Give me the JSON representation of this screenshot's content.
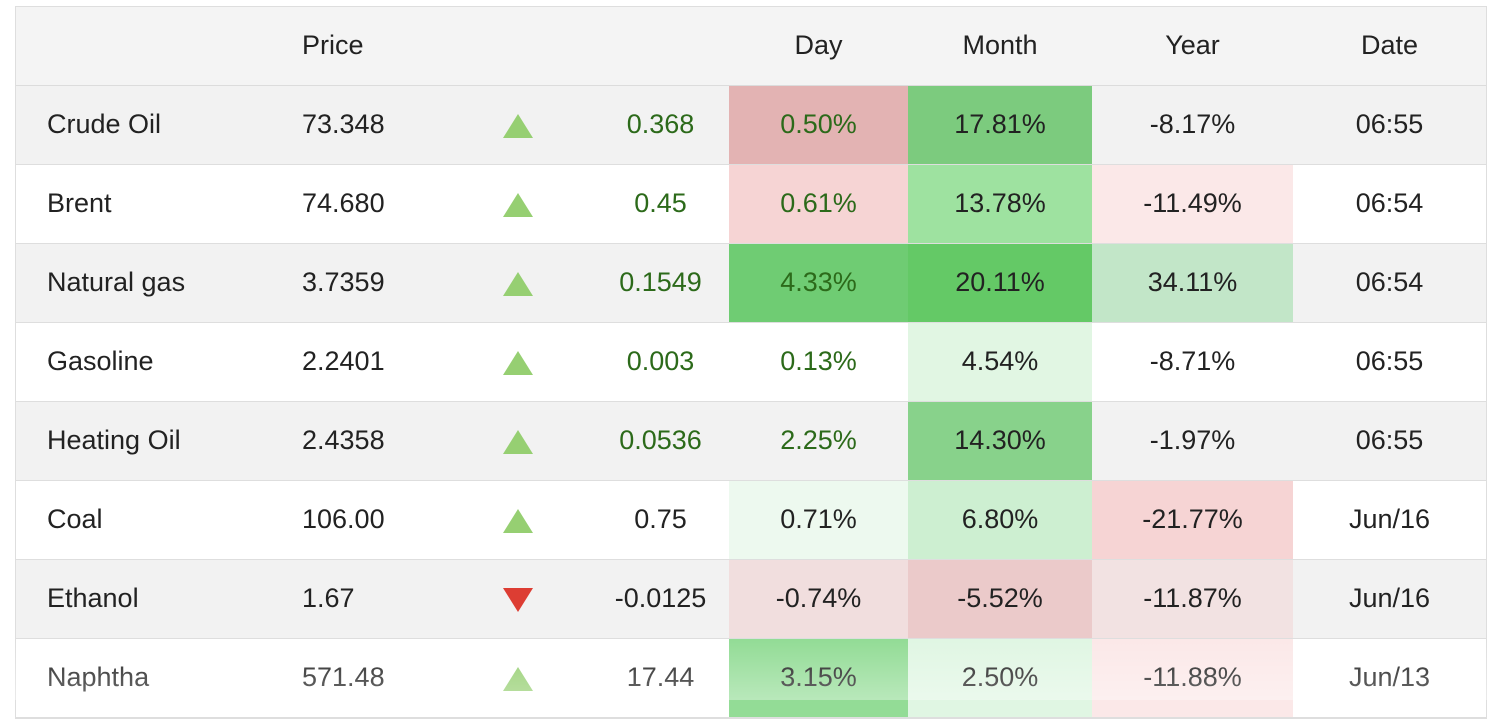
{
  "table": {
    "headers": {
      "name": "",
      "price": "Price",
      "arrow": "",
      "change": "",
      "day": "Day",
      "month": "Month",
      "year": "Year",
      "date": "Date"
    },
    "rows": [
      {
        "name": "Crude Oil",
        "price": "73.348",
        "direction": "up",
        "change": "0.368",
        "change_color": "green",
        "day": "0.50%",
        "day_bg": "#e3b3b3",
        "day_color": "green",
        "month": "17.81%",
        "month_bg": "#7ccb7e",
        "year": "-8.17%",
        "year_bg": "",
        "date": "06:55"
      },
      {
        "name": "Brent",
        "price": "74.680",
        "direction": "up",
        "change": "0.45",
        "change_color": "green",
        "day": "0.61%",
        "day_bg": "#f6d4d4",
        "day_color": "green",
        "month": "13.78%",
        "month_bg": "#9ee2a0",
        "year": "-11.49%",
        "year_bg": "#fbe8e8",
        "date": "06:54"
      },
      {
        "name": "Natural gas",
        "price": "3.7359",
        "direction": "up",
        "change": "0.1549",
        "change_color": "green",
        "day": "4.33%",
        "day_bg": "#6fcc73",
        "day_color": "green",
        "month": "20.11%",
        "month_bg": "#64c966",
        "year": "34.11%",
        "year_bg": "#c2e6c8",
        "date": "06:54"
      },
      {
        "name": "Gasoline",
        "price": "2.2401",
        "direction": "up",
        "change": "0.003",
        "change_color": "green",
        "day": "0.13%",
        "day_bg": "",
        "day_color": "green",
        "month": "4.54%",
        "month_bg": "#e1f6e3",
        "year": "-8.71%",
        "year_bg": "",
        "date": "06:55"
      },
      {
        "name": "Heating Oil",
        "price": "2.4358",
        "direction": "up",
        "change": "0.0536",
        "change_color": "green",
        "day": "2.25%",
        "day_bg": "",
        "day_color": "green",
        "month": "14.30%",
        "month_bg": "#88d28b",
        "year": "-1.97%",
        "year_bg": "",
        "date": "06:55"
      },
      {
        "name": "Coal",
        "price": "106.00",
        "direction": "up",
        "change": "0.75",
        "change_color": "dark",
        "day": "0.71%",
        "day_bg": "#edf9ef",
        "day_color": "dark",
        "month": "6.80%",
        "month_bg": "#cdefd1",
        "year": "-21.77%",
        "year_bg": "#f6d4d4",
        "date": "Jun/16"
      },
      {
        "name": "Ethanol",
        "price": "1.67",
        "direction": "down",
        "change": "-0.0125",
        "change_color": "dark",
        "day": "-0.74%",
        "day_bg": "#f1dede",
        "day_color": "dark",
        "month": "-5.52%",
        "month_bg": "#ebcaca",
        "year": "-11.87%",
        "year_bg": "#f2e2e2",
        "date": "Jun/16"
      },
      {
        "name": "Naphtha",
        "price": "571.48",
        "direction": "up",
        "change": "17.44",
        "change_color": "dark",
        "day": "3.15%",
        "day_bg": "#93dc96",
        "day_color": "dark",
        "month": "2.50%",
        "month_bg": "#e0f6e3",
        "year": "-11.88%",
        "year_bg": "#fbe8e8",
        "date": "Jun/13"
      }
    ]
  },
  "colors": {
    "up_arrow": "#96cf72",
    "down_arrow": "#dd3d33",
    "positive_text": "#2c6a1a",
    "header_bg": "#f4f4f4",
    "odd_row_bg": "#f2f2f2"
  }
}
